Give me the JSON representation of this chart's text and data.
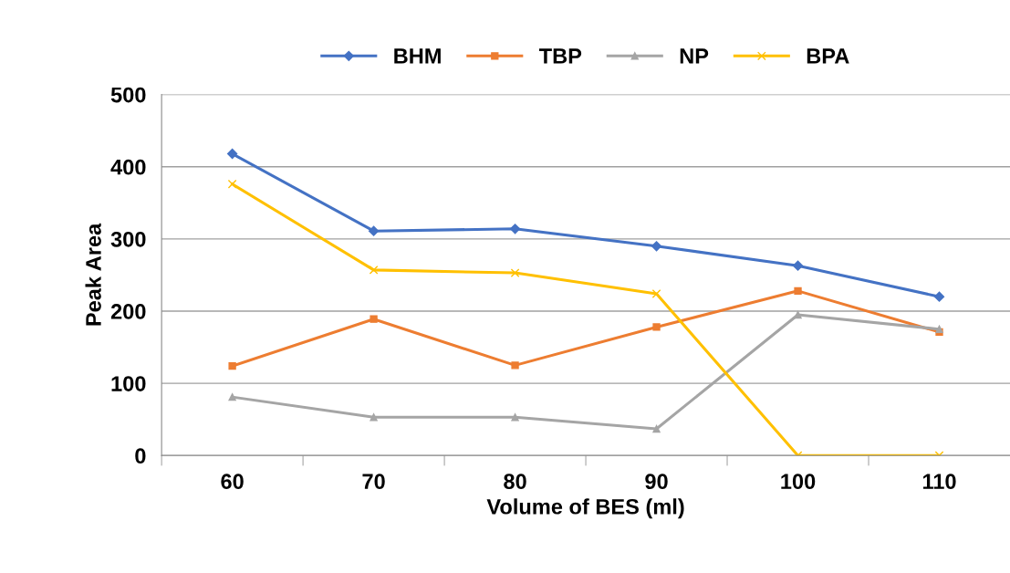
{
  "chart_data": {
    "type": "line",
    "xlabel": "Volume of BES (ml)",
    "ylabel": "Peak Area",
    "categories": [
      "60",
      "70",
      "80",
      "90",
      "100",
      "110"
    ],
    "series": [
      {
        "name": "BHM",
        "color": "#4472c4",
        "marker": "diamond",
        "values": [
          418,
          311,
          314,
          290,
          263,
          220
        ]
      },
      {
        "name": "TBP",
        "color": "#ed7d31",
        "marker": "square",
        "values": [
          124,
          189,
          125,
          178,
          228,
          171
        ]
      },
      {
        "name": "NP",
        "color": "#a5a5a5",
        "marker": "triangle",
        "values": [
          81,
          53,
          53,
          37,
          195,
          175
        ]
      },
      {
        "name": "BPA",
        "color": "#ffc000",
        "marker": "cross",
        "values": [
          376,
          257,
          253,
          224,
          0,
          0
        ]
      }
    ],
    "ylim": [
      0,
      500
    ],
    "yticks": [
      0,
      100,
      200,
      300,
      400,
      500
    ],
    "grid": "y",
    "legend": "top",
    "line_style": "solid"
  }
}
